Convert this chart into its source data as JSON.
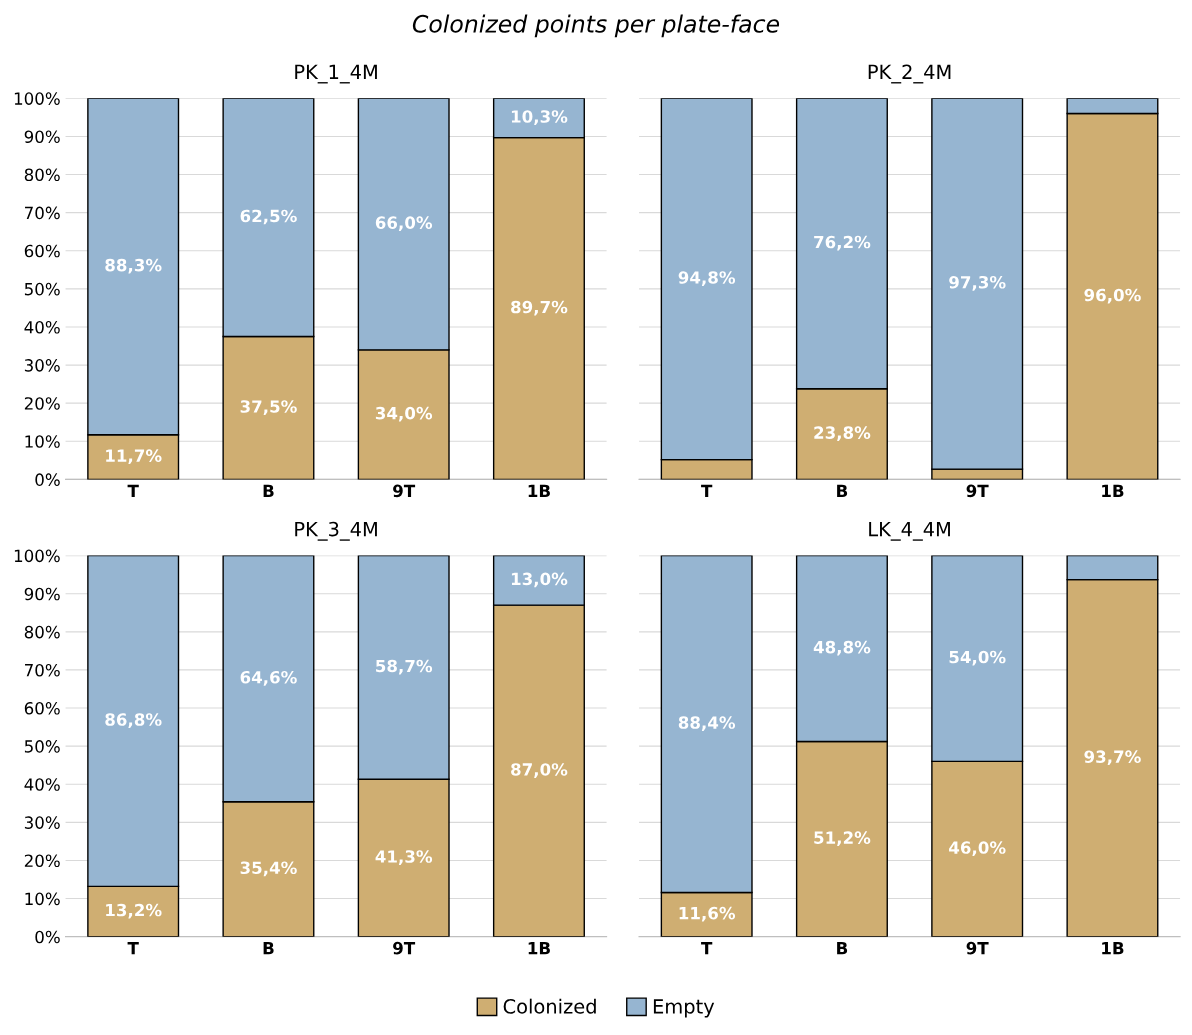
{
  "chart_data": [
    {
      "type": "bar",
      "title": "PK_1_4M",
      "annotations": [
        "Colonized points per plate-face"
      ],
      "categories": [
        "T",
        "B",
        "9T",
        "1B"
      ],
      "stacked": true,
      "grid": "y",
      "legend": "bottom",
      "ylim": [
        0,
        100
      ],
      "yticks": [
        {
          "value": 0,
          "label": "0%"
        },
        {
          "value": 10,
          "label": "10%"
        },
        {
          "value": 20,
          "label": "20%"
        },
        {
          "value": 30,
          "label": "30%"
        },
        {
          "value": 40,
          "label": "40%"
        },
        {
          "value": 50,
          "label": "50%"
        },
        {
          "value": 60,
          "label": "60%"
        },
        {
          "value": 70,
          "label": "70%"
        },
        {
          "value": 80,
          "label": "80%"
        },
        {
          "value": 90,
          "label": "90%"
        },
        {
          "value": 100,
          "label": "100%"
        }
      ],
      "series": [
        {
          "name": "Colonized",
          "color": "#cfae72",
          "values": [
            11.7,
            37.5,
            34.0,
            89.7
          ],
          "value_labels": [
            "11,7%",
            "37,5%",
            "34,0%",
            "89,7%"
          ]
        },
        {
          "name": "Empty",
          "color": "#96b5d1",
          "values": [
            88.3,
            62.5,
            66.0,
            10.3
          ],
          "value_labels": [
            "88,3%",
            "62,5%",
            "66,0%",
            "10,3%"
          ]
        }
      ]
    },
    {
      "type": "bar",
      "title": "PK_2_4M",
      "categories": [
        "T",
        "B",
        "9T",
        "1B"
      ],
      "stacked": true,
      "grid": "y",
      "tick_labels": "x",
      "ylim": [
        0,
        100
      ],
      "yticks": [
        0,
        10,
        20,
        30,
        40,
        50,
        60,
        70,
        80,
        90,
        100
      ],
      "series": [
        {
          "color": "#cfae72",
          "values": [
            5.2,
            23.8,
            2.7,
            96.0
          ],
          "value_labels": [
            null,
            "23,8%",
            null,
            "96,0%"
          ]
        },
        {
          "color": "#96b5d1",
          "values": [
            94.8,
            76.2,
            97.3,
            4.0
          ],
          "value_labels": [
            "94,8%",
            "76,2%",
            "97,3%",
            null
          ]
        }
      ]
    },
    {
      "type": "bar",
      "title": "PK_3_4M",
      "categories": [
        "T",
        "B",
        "9T",
        "1B"
      ],
      "stacked": true,
      "grid": "y",
      "ylim": [
        0,
        100
      ],
      "yticks": [
        {
          "value": 0,
          "label": "0%"
        },
        {
          "value": 10,
          "label": "10%"
        },
        {
          "value": 20,
          "label": "20%"
        },
        {
          "value": 30,
          "label": "30%"
        },
        {
          "value": 40,
          "label": "40%"
        },
        {
          "value": 50,
          "label": "50%"
        },
        {
          "value": 60,
          "label": "60%"
        },
        {
          "value": 70,
          "label": "70%"
        },
        {
          "value": 80,
          "label": "80%"
        },
        {
          "value": 90,
          "label": "90%"
        },
        {
          "value": 100,
          "label": "100%"
        }
      ],
      "series": [
        {
          "color": "#cfae72",
          "values": [
            13.2,
            35.4,
            41.3,
            87.0
          ],
          "value_labels": [
            "13,2%",
            "35,4%",
            "41,3%",
            "87,0%"
          ]
        },
        {
          "color": "#96b5d1",
          "values": [
            86.8,
            64.6,
            58.7,
            13.0
          ],
          "value_labels": [
            "86,8%",
            "64,6%",
            "58,7%",
            "13,0%"
          ]
        }
      ]
    },
    {
      "type": "bar",
      "title": "LK_4_4M",
      "categories": [
        "T",
        "B",
        "9T",
        "1B"
      ],
      "stacked": true,
      "grid": "y",
      "tick_labels": "x",
      "ylim": [
        0,
        100
      ],
      "yticks": [
        0,
        10,
        20,
        30,
        40,
        50,
        60,
        70,
        80,
        90,
        100
      ],
      "series": [
        {
          "color": "#cfae72",
          "values": [
            11.6,
            51.2,
            46.0,
            93.7
          ],
          "value_labels": [
            "11,6%",
            "51,2%",
            "46,0%",
            "93,7%"
          ]
        },
        {
          "color": "#96b5d1",
          "values": [
            88.4,
            48.8,
            54.0,
            6.3
          ],
          "value_labels": [
            "88,4%",
            "48,8%",
            "54,0%",
            null
          ]
        }
      ]
    }
  ]
}
